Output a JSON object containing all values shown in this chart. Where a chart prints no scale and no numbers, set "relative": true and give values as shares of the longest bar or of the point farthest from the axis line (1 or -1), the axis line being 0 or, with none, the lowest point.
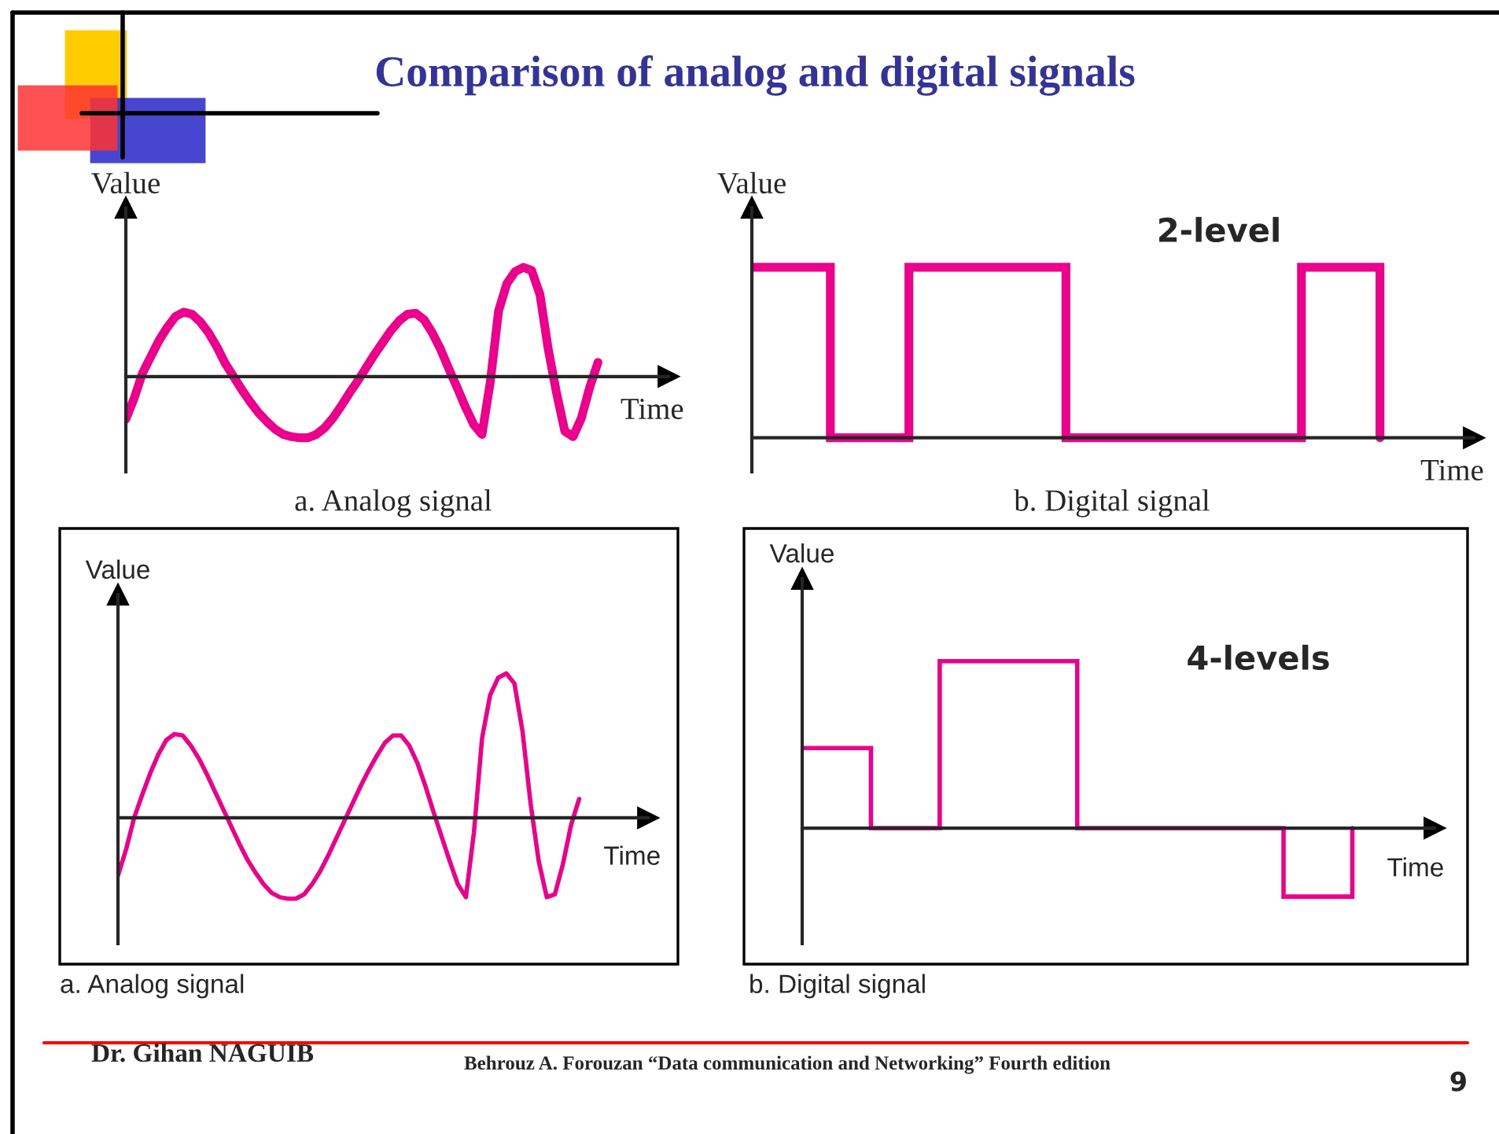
{
  "chart_data": [
    {
      "type": "line",
      "title": "Comparison of analog and digital signals",
      "xlabel": "Time",
      "ylabel": "Value",
      "relative": true,
      "annotations": [
        "a. Analog signal",
        "Dr. Gihan NAGUIB",
        "Behrouz A. Forouzan “Data communication and Networking” Fourth edition",
        "9"
      ],
      "categories": [
        null,
        null,
        null,
        null,
        null,
        null,
        null,
        null,
        null,
        null,
        null,
        null,
        null,
        null,
        null,
        null,
        null,
        null,
        null,
        null,
        null,
        null,
        null,
        null,
        null,
        null,
        null,
        null,
        null,
        null,
        null,
        null,
        null,
        null,
        null,
        null,
        null,
        null,
        null,
        null,
        null,
        null,
        null,
        null,
        null,
        null,
        null,
        null,
        null,
        null,
        null,
        null,
        null,
        null,
        null,
        null,
        null,
        null
      ],
      "series": [
        {
          "color": "#ec008c",
          "values": [
            -0.39,
            -0.2,
            0.03,
            0.18,
            0.33,
            0.45,
            0.55,
            0.59,
            0.57,
            0.5,
            0.4,
            0.27,
            0.12,
            0,
            -0.12,
            -0.23,
            -0.33,
            -0.41,
            -0.48,
            -0.53,
            -0.55,
            -0.56,
            -0.56,
            -0.53,
            -0.47,
            -0.38,
            -0.27,
            -0.15,
            -0.04,
            0.08,
            0.2,
            0.31,
            0.42,
            0.51,
            0.57,
            0.58,
            0.52,
            0.4,
            0.25,
            0.07,
            -0.1,
            -0.28,
            -0.44,
            -0.53,
            -0.05,
            0.6,
            0.85,
            0.96,
            1,
            0.97,
            0.75,
            0.25,
            -0.15,
            -0.5,
            -0.55,
            -0.38,
            -0.1,
            0.13
          ]
        }
      ]
    },
    {
      "type": "step",
      "xlabel": "Time",
      "ylabel": "Value",
      "relative": true,
      "annotations": [
        "2-level",
        "b. Digital signal"
      ],
      "categories": [
        null,
        null,
        null,
        null,
        null,
        null,
        null,
        null,
        null
      ],
      "series": [
        {
          "color": "#ec008c",
          "values": [
            1,
            0,
            1,
            1,
            0,
            0,
            0,
            1,
            0
          ]
        }
      ]
    },
    {
      "type": "line",
      "xlabel": "Time",
      "ylabel": "Value",
      "relative": true,
      "annotations": [
        "a. Analog signal"
      ],
      "categories": [
        null,
        null,
        null,
        null,
        null,
        null,
        null,
        null,
        null,
        null,
        null,
        null,
        null,
        null,
        null,
        null,
        null,
        null,
        null,
        null,
        null,
        null,
        null,
        null,
        null,
        null,
        null,
        null,
        null,
        null,
        null,
        null,
        null,
        null,
        null,
        null,
        null,
        null,
        null,
        null,
        null,
        null,
        null,
        null,
        null,
        null,
        null,
        null,
        null,
        null,
        null,
        null,
        null,
        null,
        null,
        null,
        null,
        null
      ],
      "series": [
        {
          "color": "#ec008c",
          "values": [
            -0.4,
            -0.22,
            0,
            0.16,
            0.31,
            0.44,
            0.54,
            0.58,
            0.57,
            0.5,
            0.41,
            0.3,
            0.18,
            0.06,
            -0.06,
            -0.18,
            -0.29,
            -0.38,
            -0.46,
            -0.52,
            -0.55,
            -0.56,
            -0.56,
            -0.53,
            -0.46,
            -0.37,
            -0.26,
            -0.14,
            -0.02,
            0.1,
            0.22,
            0.33,
            0.43,
            0.52,
            0.57,
            0.57,
            0.5,
            0.38,
            0.22,
            0.04,
            -0.13,
            -0.3,
            -0.46,
            -0.55,
            -0.1,
            0.55,
            0.85,
            0.97,
            1,
            0.93,
            0.6,
            0.1,
            -0.3,
            -0.55,
            -0.53,
            -0.32,
            -0.05,
            0.13
          ]
        }
      ]
    },
    {
      "type": "step",
      "xlabel": "Time",
      "ylabel": "Value",
      "relative": true,
      "annotations": [
        "4-levels",
        "b. Digital signal"
      ],
      "categories": [
        null,
        null,
        null,
        null,
        null,
        null,
        null,
        null,
        null
      ],
      "series": [
        {
          "color": "#ec008c",
          "values": [
            0.48,
            0,
            1,
            1,
            0,
            0,
            0,
            -0.41,
            0
          ]
        }
      ]
    }
  ]
}
